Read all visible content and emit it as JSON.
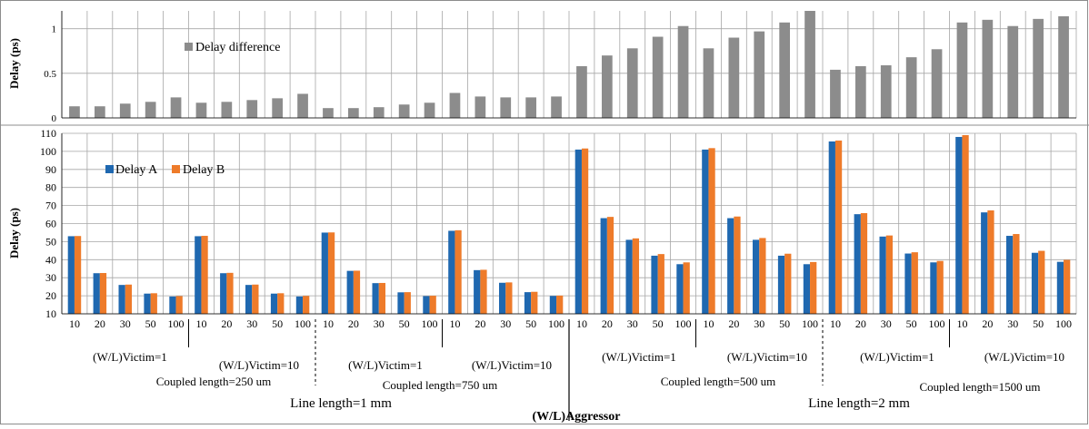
{
  "colors": {
    "difference": "#8c8c8c",
    "delay_a": "#1f68b0",
    "delay_b": "#ee7b2a",
    "grid": "#a6a6a6",
    "frame": "#8c8c8c"
  },
  "chart_data": [
    {
      "type": "bar",
      "ylabel": "Delay (ps)",
      "ylim": [
        0,
        1.2
      ],
      "yticks": [
        0,
        0.5,
        1
      ],
      "ytick_labels": [
        "0",
        "0.5",
        "1"
      ],
      "grid": true,
      "legend_position": "top-left",
      "series": [
        {
          "name": "Delay difference",
          "values": [
            0.13,
            0.13,
            0.16,
            0.18,
            0.23,
            0.17,
            0.18,
            0.2,
            0.22,
            0.27,
            0.11,
            0.11,
            0.12,
            0.15,
            0.17,
            0.28,
            0.24,
            0.23,
            0.23,
            0.24,
            0.58,
            0.7,
            0.78,
            0.91,
            1.03,
            0.78,
            0.9,
            0.97,
            1.07,
            1.2,
            0.54,
            0.58,
            0.59,
            0.68,
            0.77,
            1.07,
            1.1,
            1.03,
            1.11,
            1.14
          ]
        }
      ]
    },
    {
      "type": "bar",
      "ylabel": "Delay (ps)",
      "ylim": [
        10,
        110
      ],
      "yticks": [
        10,
        20,
        30,
        40,
        50,
        60,
        70,
        80,
        90,
        100,
        110
      ],
      "ytick_labels": [
        "10",
        "20",
        "30",
        "40",
        "50",
        "60",
        "70",
        "80",
        "90",
        "100",
        "110"
      ],
      "grid": true,
      "legend_position": "top-left",
      "categories": [
        "10",
        "20",
        "30",
        "50",
        "100",
        "10",
        "20",
        "30",
        "50",
        "100",
        "10",
        "20",
        "30",
        "50",
        "100",
        "10",
        "20",
        "30",
        "50",
        "100",
        "10",
        "20",
        "30",
        "50",
        "100",
        "10",
        "20",
        "30",
        "50",
        "100",
        "10",
        "20",
        "30",
        "50",
        "100",
        "10",
        "20",
        "30",
        "50",
        "100"
      ],
      "series": [
        {
          "name": "Delay A",
          "values": [
            53,
            32.5,
            26,
            21.2,
            19.6,
            53,
            32.5,
            26,
            21.2,
            19.6,
            55,
            33.8,
            27,
            21.9,
            19.8,
            56,
            34.2,
            27.2,
            22,
            19.9,
            101,
            63,
            51,
            42.2,
            37.5,
            101,
            63,
            51,
            42.2,
            37.5,
            105.5,
            65.2,
            52.8,
            43.4,
            38.5,
            108,
            66.2,
            53.2,
            43.8,
            38.8
          ]
        },
        {
          "name": "Delay B",
          "values": [
            53.1,
            32.6,
            26.2,
            21.4,
            19.8,
            53.2,
            32.7,
            26.2,
            21.4,
            19.9,
            55.1,
            33.9,
            27.1,
            22,
            20,
            56.3,
            34.4,
            27.4,
            22.2,
            20.1,
            101.6,
            63.7,
            51.8,
            43.1,
            38.5,
            101.8,
            63.9,
            52,
            43.3,
            38.7,
            106,
            65.8,
            53.4,
            44.1,
            39.3,
            109,
            67.3,
            54.2,
            44.9,
            39.9
          ]
        }
      ]
    }
  ],
  "annotations": {
    "victim_labels": [
      "(W/L)Victim=1",
      "(W/L)Victim=10",
      "(W/L)Victim=1",
      "(W/L)Victim=10",
      "(W/L)Victim=1",
      "(W/L)Victim=10",
      "(W/L)Victim=1",
      "(W/L)Victim=10"
    ],
    "coupled_labels": [
      "Coupled length=250 um",
      "Coupled length=750 um",
      "Coupled length=500 um",
      "Coupled length=1500 um"
    ],
    "line_labels": [
      "Line length=1 mm",
      "Line length=2 mm"
    ],
    "xlabel": "(W/L)Aggressor"
  }
}
